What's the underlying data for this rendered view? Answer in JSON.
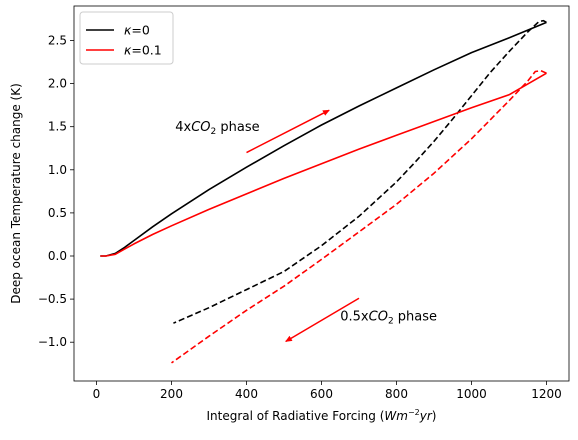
{
  "chart_data": {
    "type": "line",
    "xlabel": "Integral of Radiative Forcing (Wm^-2 yr)",
    "ylabel": "Deep ocean Temperature change (K)",
    "xlim": [
      -60,
      1260
    ],
    "ylim": [
      -1.45,
      2.9
    ],
    "xticks": [
      0,
      200,
      400,
      600,
      800,
      1000,
      1200
    ],
    "yticks": [
      -1.0,
      -0.5,
      0.0,
      0.5,
      1.0,
      1.5,
      2.0,
      2.5
    ],
    "grid": false,
    "legend_position": "top-left",
    "series": [
      {
        "name": "κ=0",
        "color": "#000000",
        "dash": "solid",
        "x": [
          10,
          25,
          50,
          75,
          100,
          150,
          200,
          300,
          400,
          500,
          600,
          700,
          800,
          900,
          1000,
          1100,
          1200
        ],
        "y": [
          0.0,
          0.0,
          0.03,
          0.1,
          0.18,
          0.34,
          0.49,
          0.77,
          1.03,
          1.28,
          1.52,
          1.74,
          1.95,
          2.16,
          2.36,
          2.53,
          2.71
        ]
      },
      {
        "name": "κ=0",
        "color": "#000000",
        "dash": "dashed",
        "x": [
          1200,
          1192,
          1180,
          1150,
          1100,
          1050,
          1000,
          950,
          900,
          850,
          800,
          700,
          600,
          500,
          400,
          300,
          205
        ],
        "y": [
          2.71,
          2.73,
          2.72,
          2.6,
          2.37,
          2.13,
          1.86,
          1.59,
          1.33,
          1.09,
          0.86,
          0.46,
          0.12,
          -0.18,
          -0.39,
          -0.6,
          -0.78
        ]
      },
      {
        "name": "κ=0.1",
        "color": "#ff0000",
        "dash": "solid",
        "x": [
          10,
          25,
          50,
          75,
          100,
          150,
          200,
          300,
          400,
          500,
          600,
          700,
          800,
          900,
          1000,
          1100,
          1200
        ],
        "y": [
          0.0,
          0.0,
          0.02,
          0.08,
          0.14,
          0.25,
          0.35,
          0.54,
          0.72,
          0.9,
          1.07,
          1.24,
          1.4,
          1.56,
          1.72,
          1.87,
          2.12
        ]
      },
      {
        "name": "κ=0.1",
        "color": "#ff0000",
        "dash": "dashed",
        "x": [
          1200,
          1185,
          1170,
          1150,
          1100,
          1000,
          900,
          800,
          700,
          600,
          500,
          400,
          300,
          200
        ],
        "y": [
          2.12,
          2.15,
          2.14,
          2.03,
          1.8,
          1.36,
          0.96,
          0.6,
          0.28,
          -0.04,
          -0.35,
          -0.63,
          -0.93,
          -1.24
        ]
      }
    ],
    "annotations": [
      {
        "label": "4x",
        "sub": "CO",
        "subscript": "2",
        "suffix": " phase",
        "x": 210,
        "y": 1.45
      },
      {
        "label": "0.5x",
        "sub": "CO",
        "subscript": "2",
        "suffix": " phase",
        "x": 650,
        "y": -0.75
      }
    ],
    "arrows": [
      {
        "x1": 400,
        "y1": 1.2,
        "x2": 620,
        "y2": 1.69,
        "color": "#ff0000"
      },
      {
        "x1": 700,
        "y1": -0.49,
        "x2": 505,
        "y2": -0.99,
        "color": "#ff0000"
      }
    ]
  },
  "legend": [
    {
      "label": "κ=0",
      "color": "#000000"
    },
    {
      "label": "κ=0.1",
      "color": "#ff0000"
    }
  ]
}
